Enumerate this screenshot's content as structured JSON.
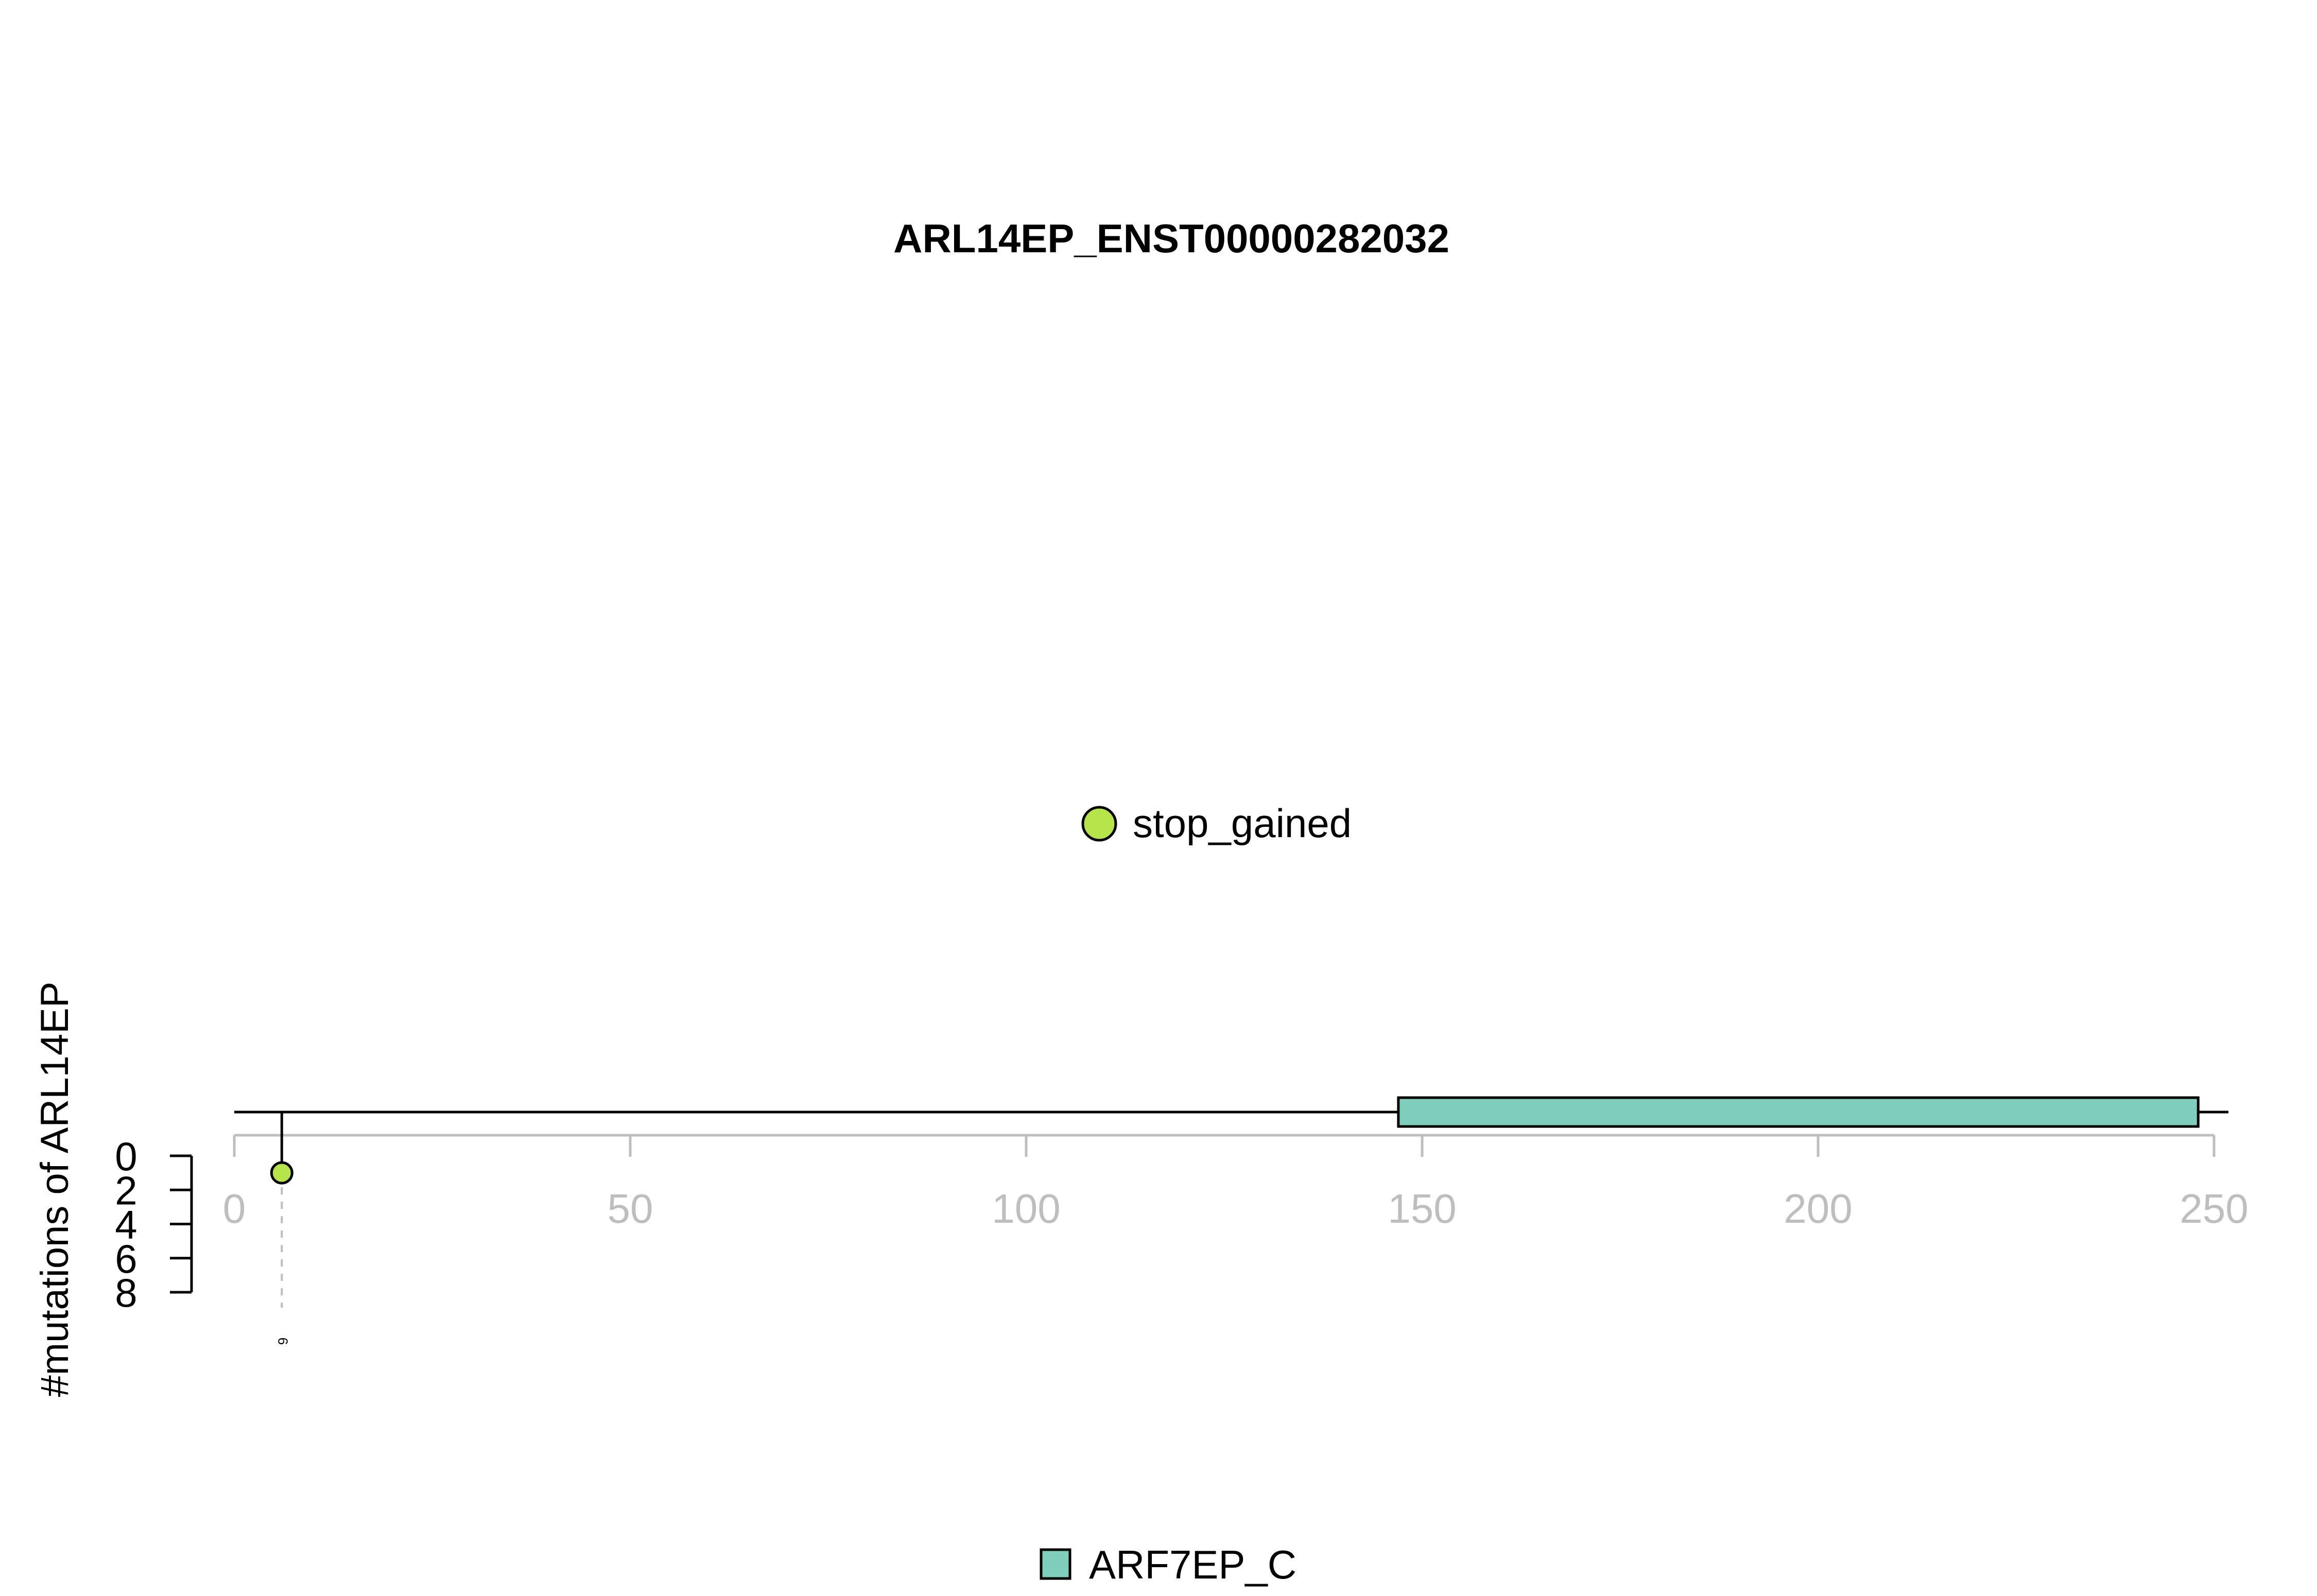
{
  "chart_data": {
    "type": "lollipop",
    "title": "ARL14EP_ENST00000282032",
    "ylabel": "#mutations of ARL14EP",
    "x_ticks": [
      0,
      50,
      100,
      150,
      200,
      250
    ],
    "x_range": [
      0,
      250
    ],
    "y_ticks": [
      0,
      2,
      4,
      6,
      8
    ],
    "y_range": [
      0,
      8
    ],
    "protein_length": 250,
    "mutations": [
      {
        "position": 6,
        "count": 1,
        "label": "6",
        "type": "stop_gained",
        "color": "#B8E44B"
      }
    ],
    "domains": [
      {
        "name": "ARF7EP_C",
        "start": 147,
        "end": 248,
        "color": "#7FCDBB"
      }
    ],
    "mutation_legend": [
      {
        "label": "stop_gained",
        "color": "#B8E44B"
      }
    ],
    "domain_legend": [
      {
        "label": "ARF7EP_C",
        "color": "#7FCDBB"
      }
    ],
    "colors": {
      "axis": "#BEBEBE",
      "backbone": "#000000",
      "guide": "#BEBEBE"
    }
  }
}
